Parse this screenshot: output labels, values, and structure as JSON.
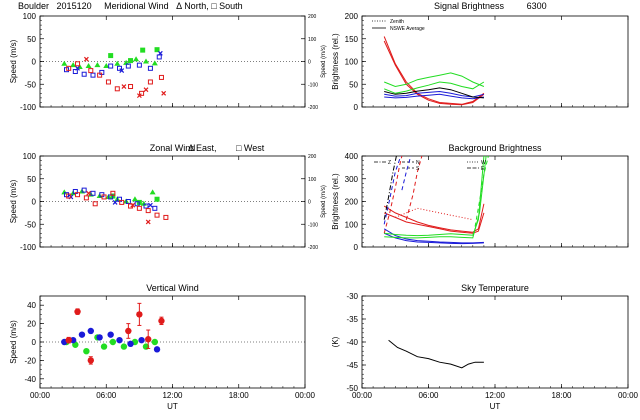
{
  "header": {
    "site": "Boulder",
    "date": "2015120",
    "meridional_title": "Meridional Wind",
    "north_label": "North,",
    "south_label": "South",
    "signal_title": "Signal Brightness",
    "wavelength": "6300"
  },
  "colors": {
    "red": "#e01b1b",
    "green": "#22dd22",
    "blue": "#1a1ad8",
    "black": "#000000"
  },
  "chart_data": [
    {
      "id": "meridional",
      "type": "scatter",
      "title": "",
      "ylabel": "Speed (m/s)",
      "y2label": "Speed (m/s)",
      "ylim": [
        -100,
        100
      ],
      "y2lim": [
        -200,
        200
      ],
      "yticks": [
        "100",
        "50",
        "0",
        "-50",
        "-100"
      ],
      "y2ticks": [
        "200",
        "100",
        "0",
        "-100",
        "-200"
      ],
      "xlim": [
        0,
        24
      ],
      "series": [
        {
          "color": "green",
          "marker": "tri",
          "x": [
            2.2,
            3.0,
            3.6,
            4.4,
            5.2,
            6.0,
            7.0,
            7.8,
            8.7,
            9.6,
            10.4
          ],
          "y": [
            -5,
            -8,
            -12,
            -10,
            -8,
            -10,
            -5,
            -3,
            5,
            0,
            -4
          ]
        },
        {
          "color": "green",
          "marker": "square_filled",
          "x": [
            6.4,
            8.2,
            9.3,
            10.6
          ],
          "y": [
            13,
            2,
            25,
            26
          ]
        },
        {
          "color": "blue",
          "marker": "square",
          "x": [
            2.4,
            3.2,
            4.0,
            4.8,
            5.6,
            6.4,
            7.2,
            8.0,
            9.0,
            10.0,
            10.8
          ],
          "y": [
            -18,
            -22,
            -28,
            -30,
            -24,
            -10,
            -15,
            -10,
            -8,
            -15,
            10
          ]
        },
        {
          "color": "blue",
          "marker": "x",
          "x": [
            3.4,
            7.4,
            10.9
          ],
          "y": [
            -15,
            -20,
            18
          ]
        },
        {
          "color": "red",
          "marker": "square",
          "x": [
            2.6,
            3.4,
            4.6,
            5.4,
            6.2,
            7.0,
            8.2,
            9.2,
            10.0,
            11.0
          ],
          "y": [
            -15,
            -5,
            -20,
            -30,
            -45,
            -60,
            -55,
            -70,
            -45,
            -35
          ]
        },
        {
          "color": "red",
          "marker": "x",
          "x": [
            4.2,
            7.6,
            9.0,
            9.6,
            11.2
          ],
          "y": [
            5,
            -55,
            -75,
            -62,
            -70
          ]
        }
      ]
    },
    {
      "id": "signal",
      "type": "line",
      "title": "",
      "ylabel": "Brightness (rel.)",
      "ylim": [
        0,
        200
      ],
      "yticks": [
        "200",
        "150",
        "100",
        "50",
        "0"
      ],
      "xlim": [
        0,
        24
      ],
      "legend": [
        "Zenith",
        "NSWE Average"
      ],
      "series": [
        {
          "color": "red",
          "style": "solid",
          "x": [
            2.0,
            3.0,
            4.0,
            5.0,
            6.0,
            7.0,
            8.0,
            9.0,
            10.0,
            11.0
          ],
          "y": [
            155,
            95,
            55,
            30,
            18,
            10,
            8,
            6,
            12,
            30
          ]
        },
        {
          "color": "red",
          "style": "solid",
          "x": [
            2.0,
            3.0,
            4.0,
            5.0,
            6.0,
            7.0,
            8.0,
            9.0,
            10.0,
            11.0
          ],
          "y": [
            145,
            92,
            50,
            28,
            15,
            8,
            6,
            5,
            10,
            28
          ]
        },
        {
          "color": "green",
          "style": "solid",
          "x": [
            2.0,
            3.0,
            4.0,
            5.0,
            6.0,
            7.0,
            8.0,
            9.0,
            10.0,
            11.0
          ],
          "y": [
            55,
            45,
            50,
            60,
            65,
            70,
            75,
            68,
            55,
            45
          ]
        },
        {
          "color": "green",
          "style": "solid",
          "x": [
            2.0,
            3.0,
            4.0,
            5.0,
            6.0,
            7.0,
            8.0,
            9.0,
            10.0,
            11.0
          ],
          "y": [
            40,
            30,
            35,
            42,
            48,
            55,
            52,
            45,
            40,
            55
          ]
        },
        {
          "color": "blue",
          "style": "solid",
          "x": [
            2.0,
            3.0,
            4.0,
            5.0,
            6.0,
            7.0,
            8.0,
            9.0,
            10.0,
            11.0
          ],
          "y": [
            28,
            24,
            25,
            30,
            32,
            34,
            30,
            25,
            22,
            28
          ]
        },
        {
          "color": "blue",
          "style": "solid",
          "x": [
            2.0,
            3.0,
            4.0,
            5.0,
            6.0,
            7.0,
            8.0,
            9.0,
            10.0,
            11.0
          ],
          "y": [
            22,
            20,
            21,
            24,
            26,
            28,
            24,
            20,
            18,
            22
          ]
        },
        {
          "color": "black",
          "style": "solid",
          "x": [
            2.0,
            3.0,
            4.0,
            5.0,
            6.0,
            7.0,
            8.0,
            9.0,
            10.0,
            11.0
          ],
          "y": [
            34,
            28,
            30,
            35,
            38,
            42,
            38,
            30,
            22,
            20
          ]
        }
      ]
    },
    {
      "id": "zonal",
      "type": "scatter",
      "title": "Zonal Wind",
      "east_label": "East,",
      "west_label": "West",
      "ylabel": "Speed (m/s)",
      "y2label": "Speed (m/s)",
      "ylim": [
        -100,
        100
      ],
      "y2lim": [
        -200,
        200
      ],
      "yticks": [
        "100",
        "50",
        "0",
        "-50",
        "-100"
      ],
      "y2ticks": [
        "200",
        "100",
        "0",
        "-100",
        "-200"
      ],
      "xlim": [
        0,
        24
      ],
      "series": [
        {
          "color": "green",
          "marker": "tri",
          "x": [
            2.2,
            3.0,
            3.8,
            4.6,
            5.4,
            6.2,
            7.0,
            7.8,
            8.6,
            9.4,
            10.2
          ],
          "y": [
            20,
            18,
            22,
            15,
            12,
            10,
            5,
            0,
            5,
            -5,
            20
          ]
        },
        {
          "color": "green",
          "marker": "square_filled",
          "x": [
            6.6,
            9.0,
            10.6
          ],
          "y": [
            12,
            -2,
            5
          ]
        },
        {
          "color": "blue",
          "marker": "square",
          "x": [
            2.4,
            3.2,
            4.0,
            4.8,
            5.6,
            6.4,
            7.2,
            8.0,
            8.8,
            9.6,
            10.4
          ],
          "y": [
            15,
            22,
            25,
            18,
            15,
            10,
            5,
            0,
            -5,
            -10,
            -15
          ]
        },
        {
          "color": "blue",
          "marker": "x",
          "x": [
            2.8,
            6.8,
            10.0
          ],
          "y": [
            10,
            -2,
            -8
          ]
        },
        {
          "color": "red",
          "marker": "square",
          "x": [
            2.6,
            3.4,
            4.2,
            5.0,
            5.8,
            6.6,
            7.4,
            8.2,
            9.0,
            9.8,
            10.6,
            11.4
          ],
          "y": [
            12,
            15,
            8,
            -5,
            10,
            18,
            -2,
            -10,
            -15,
            -20,
            -30,
            -35
          ]
        },
        {
          "color": "red",
          "marker": "x",
          "x": [
            4.4,
            8.4,
            9.8
          ],
          "y": [
            18,
            -8,
            -45
          ]
        }
      ]
    },
    {
      "id": "background",
      "type": "line",
      "title": "Background Brightness",
      "ylabel": "Brightness (rel.)",
      "ylim": [
        0,
        400
      ],
      "yticks": [
        "400",
        "300",
        "200",
        "100",
        "0"
      ],
      "xlim": [
        0,
        24
      ],
      "legend": [
        "Z",
        "N",
        "S",
        "W",
        "E"
      ],
      "series": [
        {
          "color": "red",
          "style": "solid",
          "x": [
            2.0,
            3.0,
            4.0,
            5.0,
            6.0,
            7.0,
            8.0,
            9.0,
            10.0,
            10.5,
            11.0
          ],
          "y": [
            180,
            150,
            130,
            110,
            95,
            85,
            75,
            70,
            65,
            80,
            190
          ]
        },
        {
          "color": "red",
          "style": "solid",
          "x": [
            2.0,
            3.0,
            4.0,
            5.0,
            6.0,
            7.0,
            8.0,
            9.0,
            10.0,
            10.5,
            11.0
          ],
          "y": [
            150,
            130,
            110,
            100,
            90,
            80,
            70,
            65,
            60,
            70,
            150
          ]
        },
        {
          "color": "red",
          "style": "dash",
          "x": [
            2.0,
            2.5,
            3.0,
            3.4,
            3.6
          ],
          "y": [
            60,
            150,
            260,
            360,
            400
          ]
        },
        {
          "color": "red",
          "style": "dash",
          "x": [
            4.0,
            4.6,
            5.0,
            5.4
          ],
          "y": [
            120,
            230,
            330,
            400
          ]
        },
        {
          "color": "red",
          "style": "dot",
          "x": [
            3.0,
            4.0,
            5.0,
            6.0,
            7.0,
            8.0,
            9.0,
            10.0
          ],
          "y": [
            130,
            150,
            170,
            160,
            150,
            140,
            130,
            120
          ]
        },
        {
          "color": "blue",
          "style": "solid",
          "x": [
            2.0,
            3.0,
            4.0,
            5.0,
            6.0,
            7.0,
            8.0,
            9.0,
            10.0,
            11.0
          ],
          "y": [
            80,
            50,
            35,
            28,
            25,
            22,
            20,
            18,
            18,
            20
          ]
        },
        {
          "color": "blue",
          "style": "solid",
          "x": [
            2.0,
            3.0,
            4.0,
            5.0,
            6.0,
            7.0,
            8.0,
            9.0,
            10.0,
            11.0
          ],
          "y": [
            60,
            40,
            28,
            22,
            20,
            18,
            16,
            15,
            16,
            18
          ]
        },
        {
          "color": "blue",
          "style": "dash",
          "x": [
            2.0,
            2.5,
            3.0,
            3.5
          ],
          "y": [
            100,
            210,
            330,
            400
          ]
        },
        {
          "color": "blue",
          "style": "dash",
          "x": [
            3.6,
            4.0,
            4.4
          ],
          "y": [
            250,
            330,
            400
          ]
        },
        {
          "color": "green",
          "style": "solid",
          "x": [
            2.0,
            3.0,
            4.0,
            5.0,
            6.0,
            7.0,
            8.0,
            9.0,
            10.0,
            10.5,
            11.0
          ],
          "y": [
            60,
            55,
            52,
            50,
            52,
            55,
            58,
            55,
            52,
            120,
            400
          ]
        },
        {
          "color": "green",
          "style": "solid",
          "x": [
            2.0,
            3.0,
            4.0,
            5.0,
            6.0,
            7.0,
            8.0,
            9.0,
            10.0,
            10.6,
            11.2
          ],
          "y": [
            45,
            42,
            40,
            40,
            42,
            45,
            45,
            42,
            40,
            150,
            400
          ]
        },
        {
          "color": "green",
          "style": "dash",
          "x": [
            10.2,
            10.6,
            11.0,
            11.4
          ],
          "y": [
            90,
            200,
            320,
            400
          ]
        },
        {
          "color": "black",
          "style": "dashdot",
          "x": [
            2.0,
            2.4,
            2.8,
            3.1
          ],
          "y": [
            120,
            220,
            330,
            400
          ]
        }
      ]
    },
    {
      "id": "vertical",
      "type": "scatter",
      "title": "Vertical Wind",
      "ylabel": "Speed (m/s)",
      "ylim": [
        -50,
        50
      ],
      "yticks": [
        "40",
        "20",
        "0",
        "-20",
        "-40"
      ],
      "xlim": [
        0,
        24
      ],
      "series": [
        {
          "color": "green",
          "marker": "dot",
          "x": [
            2.4,
            3.2,
            4.2,
            5.2,
            5.8,
            6.6,
            7.6,
            8.6,
            9.6,
            10.4
          ],
          "y": [
            0,
            -3,
            -10,
            5,
            -5,
            0,
            -5,
            0,
            -5,
            0
          ]
        },
        {
          "color": "blue",
          "marker": "dot",
          "x": [
            2.2,
            3.0,
            3.8,
            4.6,
            5.4,
            6.4,
            7.2,
            8.2,
            9.2,
            10.6
          ],
          "y": [
            0,
            2,
            8,
            12,
            5,
            8,
            2,
            -2,
            2,
            -8
          ]
        },
        {
          "color": "red",
          "marker": "dot",
          "x": [
            2.6,
            3.4,
            4.6,
            8.0,
            9.0,
            9.8,
            11.0
          ],
          "y": [
            2,
            33,
            -20,
            12,
            30,
            3,
            23
          ],
          "err": [
            3,
            3,
            4,
            8,
            12,
            10,
            4
          ]
        }
      ]
    },
    {
      "id": "sky",
      "type": "line",
      "title": "Sky Temperature",
      "ylabel": "(K)",
      "ylim": [
        -50,
        -25
      ],
      "yticks": [
        "-30",
        "-35",
        "-40",
        "-45",
        "-50"
      ],
      "xlim": [
        0,
        24
      ],
      "series": [
        {
          "color": "black",
          "style": "solid",
          "x": [
            2.4,
            3.2,
            4.0,
            5.0,
            6.0,
            7.0,
            8.0,
            9.0,
            9.6,
            10.2,
            11.0
          ],
          "y": [
            -37,
            -39,
            -40,
            -41.5,
            -42,
            -43,
            -43.5,
            -44.5,
            -43.5,
            -43,
            -43
          ]
        }
      ]
    }
  ],
  "x_axis": {
    "ticks": [
      "00:00",
      "06:00",
      "12:00",
      "18:00",
      "00:00"
    ],
    "label": "UT"
  }
}
